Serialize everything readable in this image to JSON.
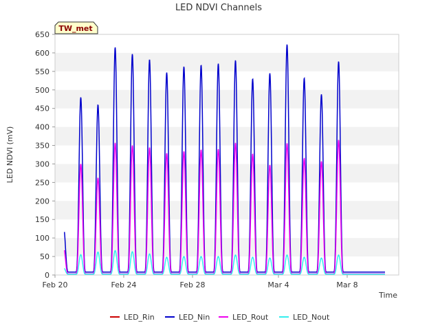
{
  "chart_data": {
    "type": "line",
    "title": "LED NDVI Channels",
    "xlabel": "Time",
    "ylabel": "LED NDVI (mV)",
    "ylim": [
      0,
      650
    ],
    "yticks": [
      0,
      50,
      100,
      150,
      200,
      250,
      300,
      350,
      400,
      450,
      500,
      550,
      600,
      650
    ],
    "xlim": [
      "2024-02-20",
      "2024-03-11"
    ],
    "xticks": [
      {
        "date": "2024-02-20",
        "label": "Feb 20"
      },
      {
        "date": "2024-02-24",
        "label": "Feb 24"
      },
      {
        "date": "2024-02-28",
        "label": "Feb 28"
      },
      {
        "date": "2024-03-04",
        "label": "Mar 4"
      },
      {
        "date": "2024-03-08",
        "label": "Mar 8"
      }
    ],
    "grid": "horizontal bands",
    "legend_position": "bottom",
    "annotation": "TW_met",
    "series": [
      {
        "name": "LED_Rin",
        "color": "#cc0000"
      },
      {
        "name": "LED_Nin",
        "color": "#0000cc"
      },
      {
        "name": "LED_Rout",
        "color": "#ee00ee"
      },
      {
        "name": "LED_Nout",
        "color": "#33eeee"
      }
    ],
    "daily_peaks": {
      "dates": [
        "2024-02-20",
        "2024-02-21",
        "2024-02-22",
        "2024-02-23",
        "2024-02-24",
        "2024-02-25",
        "2024-02-26",
        "2024-02-27",
        "2024-02-28",
        "2024-02-29",
        "2024-03-01",
        "2024-03-02",
        "2024-03-03",
        "2024-03-04",
        "2024-03-05",
        "2024-03-06",
        "2024-03-07",
        "2024-03-08",
        "2024-03-09"
      ],
      "LED_Nin": [
        130,
        480,
        460,
        615,
        597,
        582,
        547,
        563,
        567,
        571,
        580,
        530,
        545,
        623,
        532,
        488,
        577,
        null,
        null
      ],
      "LED_Rout": [
        75,
        300,
        262,
        357,
        350,
        344,
        329,
        334,
        338,
        340,
        357,
        327,
        297,
        356,
        315,
        307,
        365,
        null,
        null
      ],
      "LED_Nout": [
        20,
        55,
        62,
        66,
        63,
        57,
        48,
        50,
        50,
        50,
        54,
        48,
        46,
        54,
        48,
        46,
        54,
        null,
        null
      ]
    },
    "baseline": {
      "LED_Nin": 8,
      "LED_Rout": 3,
      "LED_Nout": 2
    }
  }
}
